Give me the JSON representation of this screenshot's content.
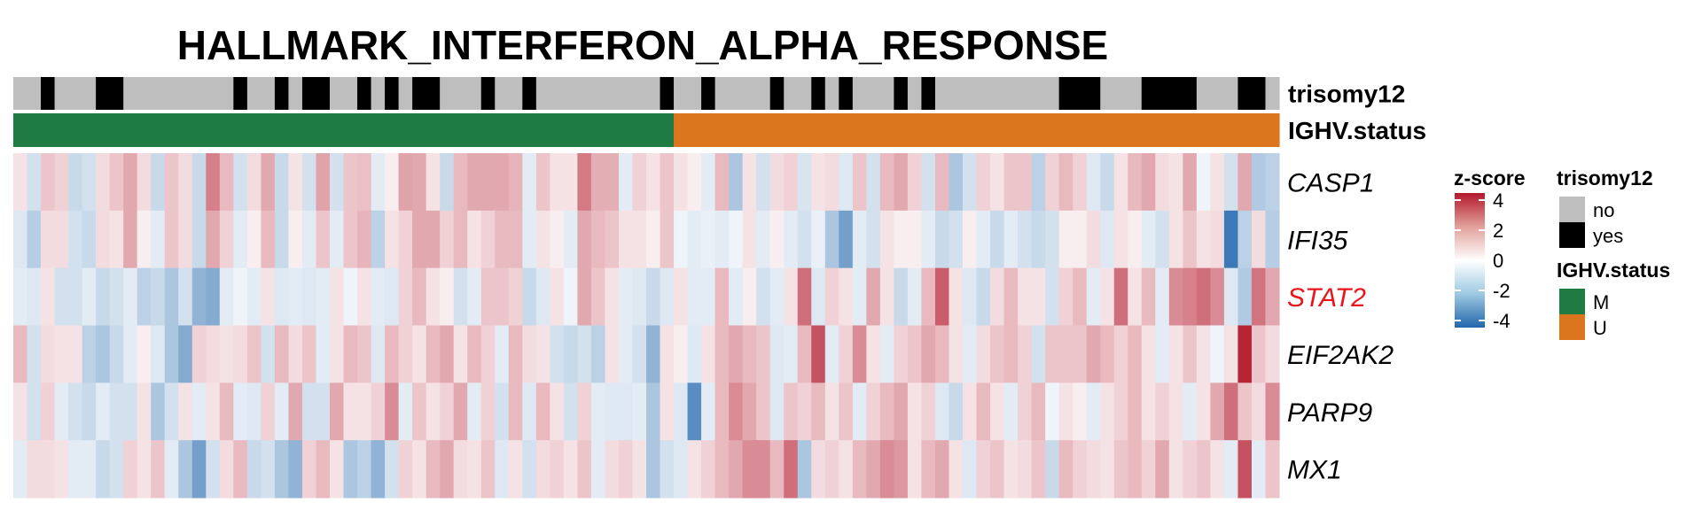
{
  "chart_data": {
    "type": "heatmap",
    "title": "HALLMARK_INTERFERON_ALPHA_RESPONSE",
    "annotations": [
      {
        "name": "trisomy12",
        "levels": [
          "no",
          "yes"
        ],
        "colors": {
          "no": "#bebebe",
          "yes": "#000000"
        },
        "values": [
          0,
          0,
          1,
          0,
          0,
          0,
          1,
          1,
          0,
          0,
          0,
          0,
          0,
          0,
          0,
          0,
          1,
          0,
          0,
          1,
          0,
          1,
          1,
          0,
          0,
          1,
          0,
          1,
          0,
          1,
          1,
          0,
          0,
          0,
          1,
          0,
          0,
          1,
          0,
          0,
          0,
          0,
          0,
          0,
          0,
          0,
          0,
          1,
          0,
          0,
          1,
          0,
          0,
          0,
          0,
          1,
          0,
          0,
          1,
          0,
          1,
          0,
          0,
          0,
          1,
          0,
          1,
          0,
          0,
          0,
          0,
          0,
          0,
          0,
          0,
          0,
          1,
          1,
          1,
          0,
          0,
          0,
          1,
          1,
          1,
          1,
          0,
          0,
          0,
          1,
          1,
          0
        ]
      },
      {
        "name": "IGHV.status",
        "levels": [
          "M",
          "U"
        ],
        "colors": {
          "M": "#1e7b41",
          "U": "#db761f"
        },
        "values": [
          0,
          0,
          0,
          0,
          0,
          0,
          0,
          0,
          0,
          0,
          0,
          0,
          0,
          0,
          0,
          0,
          0,
          0,
          0,
          0,
          0,
          0,
          0,
          0,
          0,
          0,
          0,
          0,
          0,
          0,
          0,
          0,
          0,
          0,
          0,
          0,
          0,
          0,
          0,
          0,
          0,
          0,
          0,
          0,
          0,
          0,
          0,
          0,
          1,
          1,
          1,
          1,
          1,
          1,
          1,
          1,
          1,
          1,
          1,
          1,
          1,
          1,
          1,
          1,
          1,
          1,
          1,
          1,
          1,
          1,
          1,
          1,
          1,
          1,
          1,
          1,
          1,
          1,
          1,
          1,
          1,
          1,
          1,
          1,
          1,
          1,
          1,
          1,
          1,
          1,
          1,
          1
        ]
      }
    ],
    "genes": [
      {
        "name": "CASP1",
        "color": "#000000"
      },
      {
        "name": "IFI35",
        "color": "#000000"
      },
      {
        "name": "STAT2",
        "color": "#e8161b"
      },
      {
        "name": "EIF2AK2",
        "color": "#000000"
      },
      {
        "name": "PARP9",
        "color": "#000000"
      },
      {
        "name": "MX1",
        "color": "#000000"
      }
    ],
    "columns": 92,
    "values": [
      [
        0.5,
        -0.8,
        1,
        0.8,
        -1,
        -0.8,
        0.6,
        1,
        1.5,
        0.6,
        -1,
        1,
        0.6,
        -1,
        2.2,
        1.2,
        -0.8,
        0.6,
        1.5,
        -1,
        0.5,
        -0.8,
        1.6,
        -0.8,
        1,
        1.1,
        -0.5,
        0.3,
        1.6,
        1.5,
        0.5,
        -1,
        1.2,
        1.5,
        1.5,
        1.5,
        1.3,
        -0.5,
        1,
        0.5,
        0.5,
        2.3,
        1.4,
        1.4,
        -0.5,
        0.8,
        0.5,
        1,
        0.5,
        0.3,
        -0.5,
        1.2,
        -1.5,
        0.5,
        -0.8,
        0.6,
        0.8,
        -0.7,
        0.5,
        0.6,
        -0.6,
        1,
        -0.8,
        1.2,
        1.5,
        0.8,
        -0.8,
        1.2,
        -1.5,
        -0.8,
        0.8,
        0.5,
        1,
        1,
        -1.2,
        0.8,
        1.2,
        0.8,
        -0.6,
        -1,
        0.5,
        1.2,
        1.5,
        0.6,
        0.5,
        1.5,
        -0.3,
        0.5,
        -0.8,
        1.5,
        -1.4,
        -1.2
      ],
      [
        -0.6,
        -1.3,
        0.6,
        0.6,
        -0.8,
        -1,
        0.6,
        0.5,
        1.5,
        0.3,
        -0.5,
        1,
        0.6,
        -1,
        1.5,
        0.8,
        -0.5,
        0.3,
        1.2,
        -1,
        0.3,
        -0.5,
        1,
        -0.5,
        1,
        1.3,
        -1.2,
        0.5,
        0.8,
        1.5,
        1.5,
        0.8,
        1.2,
        0.5,
        0.8,
        1.2,
        1.2,
        -0.5,
        0.5,
        0.3,
        -0.5,
        1.5,
        1.2,
        1,
        0.5,
        0.5,
        0.3,
        1,
        -0.3,
        -0.5,
        -0.4,
        -0.5,
        -0.3,
        0.5,
        -0.5,
        0.3,
        -0.5,
        -0.8,
        -0.4,
        -1.5,
        -2.5,
        -0.5,
        -0.8,
        0.5,
        0.3,
        0.3,
        -0.5,
        -1,
        -0.8,
        0.3,
        -0.5,
        -1,
        -0.5,
        -0.8,
        -1,
        -0.8,
        0.3,
        0.3,
        0.6,
        -0.6,
        0.5,
        0.3,
        -0.5,
        -0.8,
        0.5,
        1,
        0.5,
        0.6,
        -3.5,
        -1.2,
        0.6,
        -1.3
      ],
      [
        -0.5,
        -0.6,
        0.5,
        -0.8,
        -0.8,
        -0.5,
        -1,
        -0.8,
        -0.5,
        -1.2,
        -1,
        -1.5,
        -0.8,
        -2,
        -2.2,
        -0.5,
        -0.3,
        -0.5,
        0.5,
        -0.6,
        -0.5,
        -0.6,
        -0.5,
        0.5,
        -0.3,
        0.5,
        -0.5,
        -0.6,
        0.8,
        1.2,
        0.5,
        0.3,
        -0.8,
        -0.5,
        1,
        1,
        0.8,
        -1,
        -0.6,
        0.5,
        -0.3,
        1.5,
        1,
        0.5,
        -0.5,
        -0.6,
        -1,
        -0.6,
        0.5,
        -0.5,
        -0.5,
        1.2,
        -0.5,
        0.3,
        -0.8,
        -0.5,
        0.5,
        2.5,
        -0.6,
        0.8,
        0.5,
        -0.5,
        1.5,
        0.5,
        -1,
        -0.5,
        1.2,
        2.8,
        0.5,
        -0.6,
        -1,
        0.6,
        1.2,
        0.5,
        0.5,
        -0.8,
        0.8,
        1.2,
        -0.5,
        0.5,
        2.5,
        0.5,
        1.2,
        -0.5,
        2,
        2.2,
        2.5,
        2,
        -0.6,
        -1.4,
        2.4,
        1.5
      ],
      [
        1.2,
        -0.8,
        0.6,
        0.5,
        0.5,
        -1.2,
        -1.5,
        -1,
        -0.5,
        0.3,
        -0.6,
        -1.5,
        -2.2,
        0.8,
        0.6,
        0.5,
        0.6,
        1,
        -0.8,
        1.2,
        0.6,
        1,
        -0.5,
        0.5,
        1.2,
        1,
        -0.6,
        1.2,
        0.8,
        0.5,
        1.2,
        1.5,
        0.5,
        1.2,
        0.8,
        -0.5,
        1.2,
        0.6,
        0.5,
        -0.8,
        -1,
        -0.8,
        -1.2,
        0.5,
        -0.5,
        -0.8,
        -2,
        0.5,
        0.3,
        -0.6,
        0.5,
        1.2,
        1.5,
        1.2,
        1,
        -0.6,
        -0.5,
        1.2,
        3,
        -0.5,
        0.8,
        2,
        0.5,
        -0.5,
        0.8,
        1,
        1.5,
        1.2,
        0.5,
        -0.5,
        0.6,
        1,
        1.2,
        0.8,
        -0.8,
        1,
        1,
        1,
        1.5,
        1.2,
        0.8,
        1.2,
        0.5,
        -0.5,
        0.5,
        1,
        0.5,
        -0.3,
        0.5,
        3.8,
        1,
        0.6
      ],
      [
        0.5,
        -0.8,
        0.8,
        -0.5,
        -0.8,
        -1,
        -0.5,
        -0.8,
        -0.8,
        0.5,
        -1.5,
        -0.8,
        0.5,
        -0.5,
        0.5,
        1.2,
        -0.5,
        -0.6,
        0.8,
        -0.5,
        1.5,
        -0.8,
        -0.8,
        1.5,
        0.5,
        0.5,
        0.8,
        2,
        -0.5,
        1,
        0.5,
        0.8,
        1.5,
        -0.5,
        0.8,
        -0.8,
        1.2,
        -0.6,
        1.2,
        0.5,
        -0.8,
        0.8,
        -0.5,
        -0.6,
        -0.6,
        -0.5,
        -1.5,
        0.5,
        -0.6,
        -3,
        -0.5,
        1.2,
        2,
        1.5,
        1,
        -0.6,
        1,
        0.8,
        1.2,
        0.5,
        1,
        -0.5,
        0.8,
        1.2,
        1.5,
        0.5,
        0.8,
        -0.6,
        -1,
        0.5,
        1.2,
        0.5,
        -0.5,
        0.8,
        1.2,
        -0.3,
        0.5,
        0.3,
        -0.5,
        0.5,
        0.8,
        1.2,
        0.5,
        0.8,
        0.5,
        -0.5,
        0.5,
        1.5,
        2.5,
        1,
        0.6,
        2
      ],
      [
        -0.5,
        0.6,
        0.6,
        0.5,
        -0.5,
        -0.5,
        -1,
        -0.8,
        0.8,
        0.5,
        1,
        -0.5,
        -1.5,
        -2.5,
        -0.8,
        0.6,
        1.2,
        -1,
        -0.8,
        -1.5,
        -2,
        0.8,
        1.2,
        0.5,
        -1.5,
        -1.2,
        -2,
        -0.8,
        0.8,
        0.5,
        1.2,
        1.5,
        0.6,
        0.5,
        1,
        -0.6,
        0.5,
        -0.8,
        0.6,
        0.8,
        0.5,
        1,
        -0.5,
        0.6,
        0.8,
        0.5,
        -1.5,
        -0.8,
        -0.6,
        0.5,
        0.8,
        1.2,
        1.5,
        2,
        2,
        1.2,
        2.5,
        -1.5,
        0.6,
        0.8,
        0.5,
        1.2,
        1.5,
        2,
        1.8,
        0.5,
        1.2,
        1.5,
        0.5,
        -0.6,
        0.8,
        1,
        0.5,
        0.6,
        1,
        -1,
        1.2,
        0.8,
        0.6,
        0.5,
        1,
        1.2,
        0.8,
        1.5,
        0.5,
        0.8,
        1,
        0.5,
        -0.5,
        3,
        -0.5,
        1
      ]
    ],
    "colorscale": {
      "label": "z-score",
      "ticks": [
        4,
        2,
        0,
        -2,
        -4
      ],
      "range": [
        -4,
        4
      ],
      "low": "#2166ac",
      "mid": "#ffffff",
      "high": "#b2182b"
    }
  },
  "legends": {
    "zscore_title": "z-score",
    "trisomy12_title": "trisomy12",
    "trisomy12_items": [
      "no",
      "yes"
    ],
    "ighv_title": "IGHV.status",
    "ighv_items": [
      "M",
      "U"
    ]
  }
}
